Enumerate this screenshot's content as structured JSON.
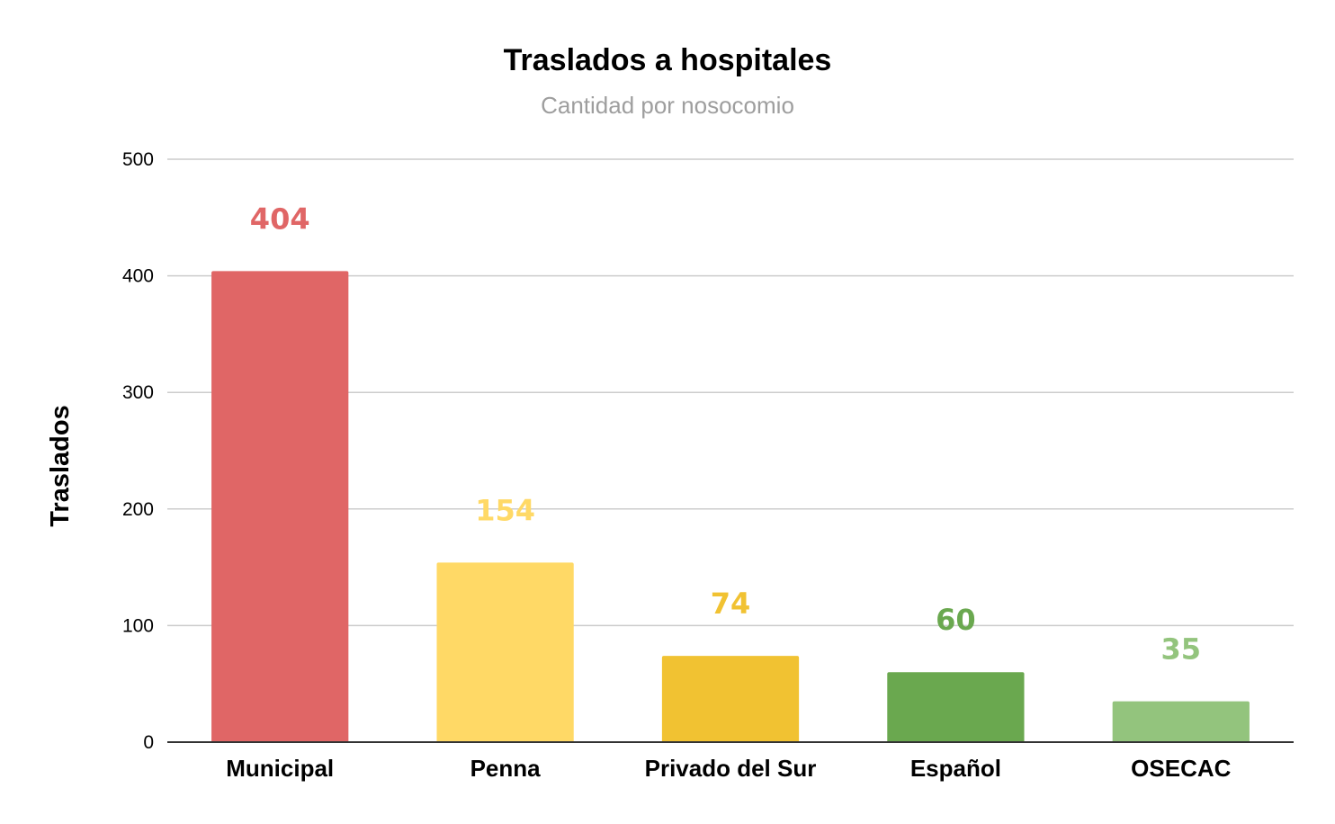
{
  "chart_data": {
    "type": "bar",
    "title": "Traslados a hospitales",
    "subtitle": "Cantidad por nosocomio",
    "xlabel": "",
    "ylabel": "Traslados",
    "categories": [
      "Municipal",
      "Penna",
      "Privado del Sur",
      "Español",
      "OSECAC"
    ],
    "values": [
      404,
      154,
      74,
      60,
      35
    ],
    "data_labels": [
      "404",
      "154",
      "74",
      "60",
      "35"
    ],
    "colors": [
      "#e06666",
      "#ffd966",
      "#f1c232",
      "#6aa84f",
      "#93c47d"
    ],
    "ylim": [
      0,
      500
    ],
    "yticks": [
      0,
      100,
      200,
      300,
      400,
      500
    ],
    "ytick_labels": [
      "0",
      "100",
      "200",
      "300",
      "400",
      "500"
    ],
    "grid": true,
    "legend": "none"
  }
}
